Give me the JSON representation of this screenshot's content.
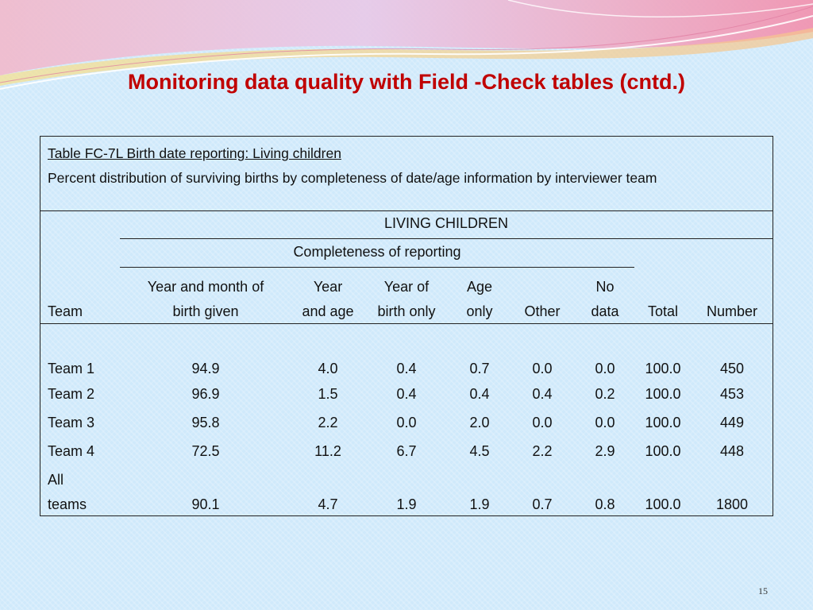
{
  "slide": {
    "title": "Monitoring data quality with Field -Check tables (cntd.)",
    "page_number": "15"
  },
  "table": {
    "title_line": "Table FC-7L  Birth date reporting: Living children",
    "description": "Percent distribution of surviving births by completeness of date/age information by interviewer team",
    "super_header": "LIVING CHILDREN",
    "group_header": "Completeness of reporting",
    "columns": [
      {
        "line1": "",
        "line2": "Team"
      },
      {
        "line1": "Year and month of",
        "line2": "birth given"
      },
      {
        "line1": "Year",
        "line2": "and age"
      },
      {
        "line1": "Year of",
        "line2": "birth only"
      },
      {
        "line1": "Age",
        "line2": "only"
      },
      {
        "line1": "",
        "line2": "Other"
      },
      {
        "line1": "No",
        "line2": "data"
      },
      {
        "line1": "",
        "line2": "Total"
      },
      {
        "line1": "",
        "line2": "Number"
      }
    ],
    "rows": [
      {
        "team1": "",
        "team2": "Team 1",
        "values": [
          "94.9",
          "4.0",
          "0.4",
          "0.7",
          "0.0",
          "0.0",
          "100.0",
          "450"
        ]
      },
      {
        "team1": "",
        "team2": "Team 2",
        "values": [
          "96.9",
          "1.5",
          "0.4",
          "0.4",
          "0.4",
          "0.2",
          "100.0",
          "453"
        ]
      },
      {
        "team1": "",
        "team2": "Team 3",
        "values": [
          "95.8",
          "2.2",
          "0.0",
          "2.0",
          "0.0",
          "0.0",
          "100.0",
          "449"
        ]
      },
      {
        "team1": "",
        "team2": "Team 4",
        "values": [
          "72.5",
          "11.2",
          "6.7",
          "4.5",
          "2.2",
          "2.9",
          "100.0",
          "448"
        ]
      },
      {
        "team1": "All",
        "team2": "teams",
        "values": [
          "90.1",
          "4.7",
          "1.9",
          "1.9",
          "0.7",
          "0.8",
          "100.0",
          "1800"
        ]
      }
    ]
  }
}
